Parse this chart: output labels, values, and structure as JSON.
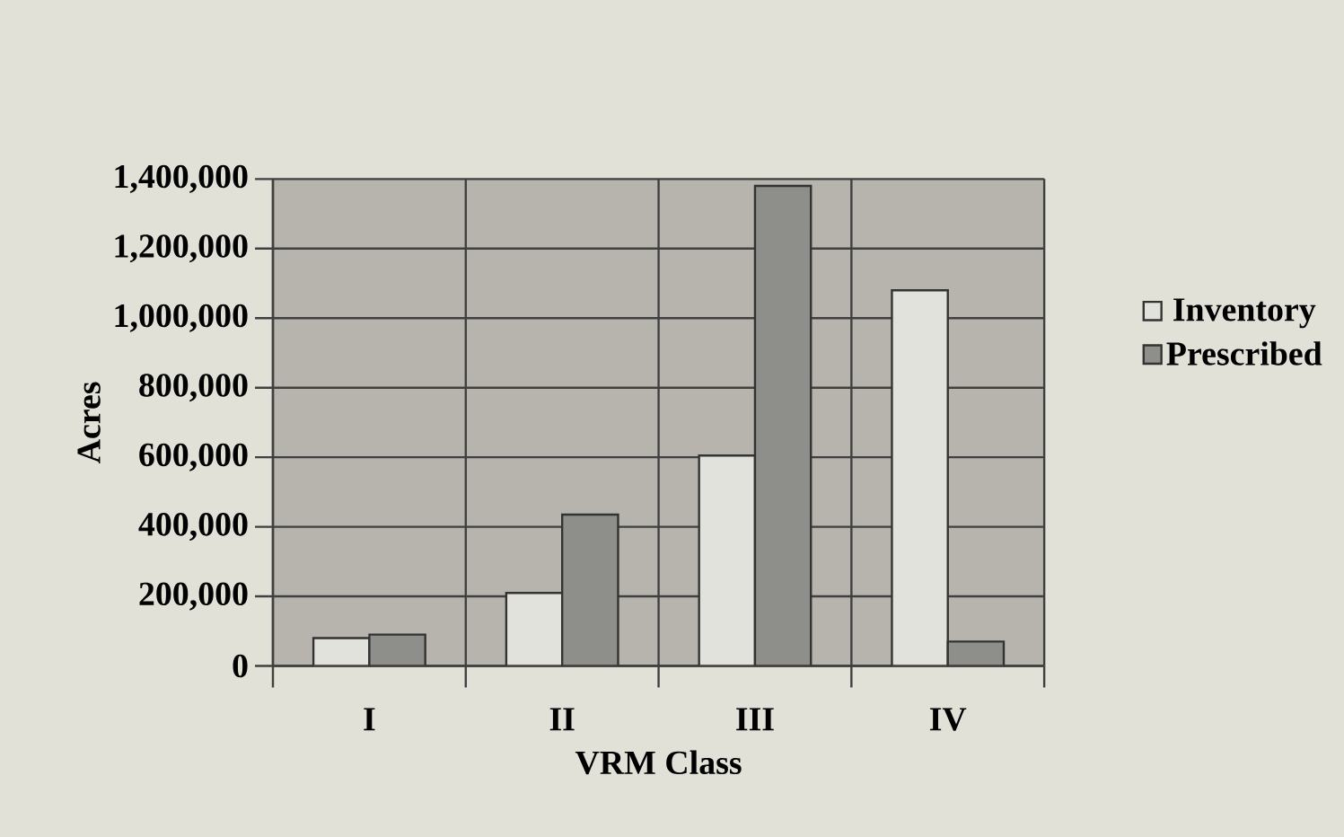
{
  "chart_data": {
    "type": "bar",
    "xlabel": "VRM Class",
    "ylabel": "Acres",
    "categories": [
      "I",
      "II",
      "III",
      "IV"
    ],
    "series": [
      {
        "name": "Inventory",
        "color": "#e2e2dc",
        "values": [
          80000,
          210000,
          605000,
          1080000
        ]
      },
      {
        "name": "Prescribed",
        "color": "#8e8e8a",
        "values": [
          90000,
          435000,
          1380000,
          70000
        ]
      }
    ],
    "ylim": [
      0,
      1400000
    ],
    "yticks": [
      0,
      {
        "value": 200000,
        "label": "200,000"
      },
      {
        "value": 400000,
        "label": "400,000"
      },
      {
        "value": 600000,
        "label": "600,000"
      },
      {
        "value": 800000,
        "label": "800,000"
      },
      {
        "value": 1000000,
        "label": "1,000,000"
      },
      {
        "value": 1200000,
        "label": "1,200,000"
      },
      {
        "value": 1400000,
        "label": "1,400,000"
      }
    ],
    "grid": true,
    "legend": "right"
  }
}
